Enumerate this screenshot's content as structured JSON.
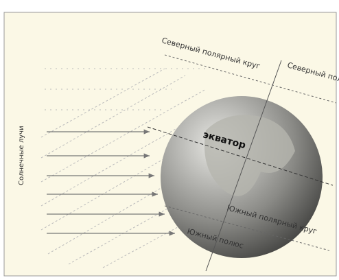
{
  "labels": {
    "north_circle": "Северный полярный круг",
    "north_pole": "Северный полюс",
    "equator": "экватор",
    "south_circle": "Южный полярный круг",
    "south_pole": "Южный полюс",
    "rays": "Солнечные лучи"
  }
}
